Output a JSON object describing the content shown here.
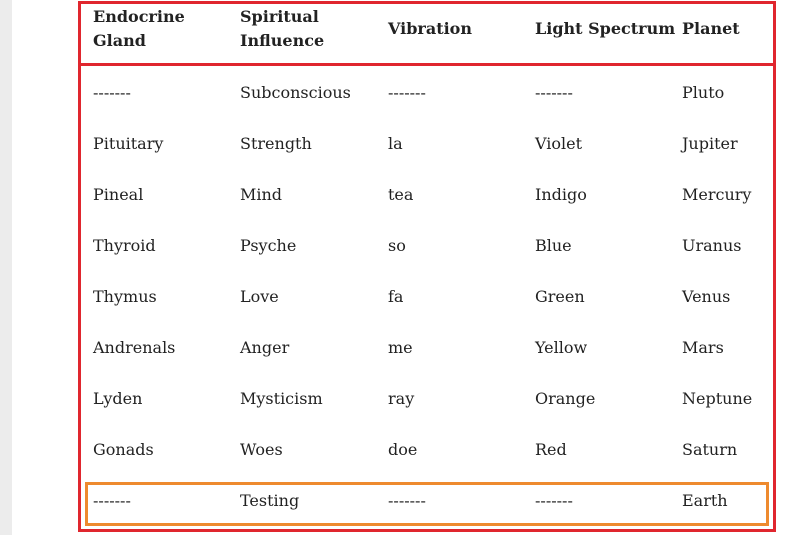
{
  "table": {
    "header": [
      "Endocrine Gland",
      "Spiritual Influence",
      "Vibration",
      "Light Spectrum",
      "Planet"
    ],
    "rows": [
      [
        "-------",
        "Subconscious",
        "-------",
        "-------",
        "Pluto"
      ],
      [
        "Pituitary",
        "Strength",
        "la",
        "Violet",
        "Jupiter"
      ],
      [
        "Pineal",
        "Mind",
        "tea",
        "Indigo",
        "Mercury"
      ],
      [
        "Thyroid",
        "Psyche",
        "so",
        "Blue",
        "Uranus"
      ],
      [
        "Thymus",
        "Love",
        "fa",
        "Green",
        "Venus"
      ],
      [
        "Andrenals",
        "Anger",
        "me",
        "Yellow",
        "Mars"
      ],
      [
        "Lyden",
        "Mysticism",
        "ray",
        "Orange",
        "Neptune"
      ],
      [
        "Gonads",
        "Woes",
        "doe",
        "Red",
        "Saturn"
      ],
      [
        "-------",
        "Testing",
        "-------",
        "-------",
        "Earth"
      ]
    ]
  }
}
